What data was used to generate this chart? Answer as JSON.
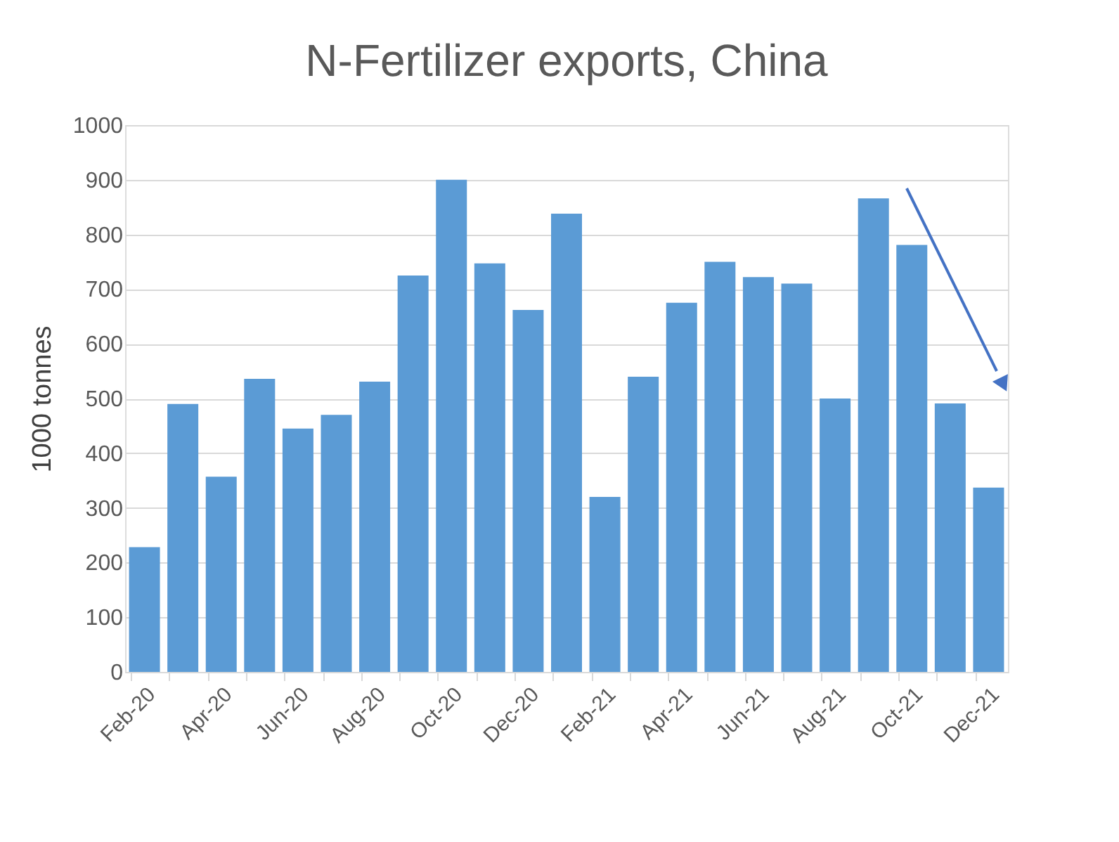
{
  "chart_data": {
    "type": "bar",
    "title": "N-Fertilizer exports, China",
    "ylabel": "1000 tonnes",
    "categories": [
      "Feb-20",
      null,
      "Apr-20",
      null,
      "Jun-20",
      null,
      "Aug-20",
      null,
      "Oct-20",
      null,
      "Dec-20",
      null,
      "Feb-21",
      null,
      "Apr-21",
      null,
      "Jun-21",
      null,
      "Aug-21",
      null,
      "Oct-21",
      null,
      "Dec-21"
    ],
    "values": [
      228,
      490,
      357,
      536,
      445,
      470,
      531,
      725,
      900,
      747,
      662,
      838,
      320,
      540,
      675,
      750,
      722,
      710,
      500,
      866,
      781,
      491,
      337
    ],
    "color": "#5b9bd5",
    "ylim": [
      0,
      1000
    ],
    "yticks": [
      0,
      100,
      200,
      300,
      400,
      500,
      600,
      700,
      800,
      900,
      1000
    ],
    "grid": "y"
  }
}
